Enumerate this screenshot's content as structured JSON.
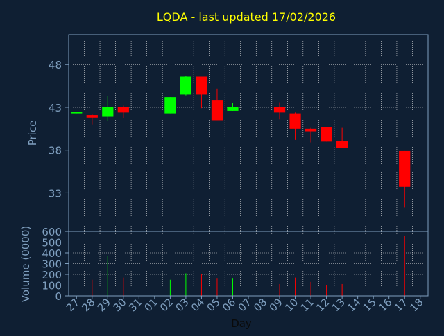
{
  "colors": {
    "background": "#0f1f33",
    "title": "#ffff00",
    "axis": "#7f9fbf",
    "grid": "#e8e8e8",
    "up": "#00ff00",
    "down": "#ff0000"
  },
  "chart_data": {
    "type": "candlestick",
    "title": "LQDA - last updated 17/02/2026",
    "xlabel": "Day",
    "price_panel": {
      "ylabel": "Price",
      "ylim": [
        28.5,
        51.5
      ],
      "yticks": [
        33,
        38,
        43,
        48
      ],
      "grid": true
    },
    "volume_panel": {
      "ylabel": "Volume (0000)",
      "ylim": [
        0,
        600
      ],
      "yticks": [
        0,
        100,
        200,
        300,
        400,
        500,
        600
      ],
      "grid": true
    },
    "x_categories": [
      "27",
      "28",
      "29",
      "30",
      "31",
      "01",
      "02",
      "03",
      "04",
      "05",
      "06",
      "07",
      "08",
      "09",
      "10",
      "11",
      "12",
      "13",
      "14",
      "15",
      "16",
      "17",
      "18"
    ],
    "candles": [
      {
        "day": "27",
        "open": 42.3,
        "close": 42.5,
        "high": 42.5,
        "low": 42.3,
        "volume": 0
      },
      {
        "day": "28",
        "open": 42.1,
        "close": 41.8,
        "high": 42.2,
        "low": 41.0,
        "volume": 150
      },
      {
        "day": "29",
        "open": 41.9,
        "close": 43.0,
        "high": 44.3,
        "low": 41.4,
        "volume": 370
      },
      {
        "day": "30",
        "open": 43.0,
        "close": 42.4,
        "high": 43.2,
        "low": 41.7,
        "volume": 170
      },
      {
        "day": "02",
        "open": 42.3,
        "close": 44.2,
        "high": 44.2,
        "low": 42.3,
        "volume": 150
      },
      {
        "day": "03",
        "open": 44.5,
        "close": 46.6,
        "high": 46.7,
        "low": 44.4,
        "volume": 210
      },
      {
        "day": "04",
        "open": 46.6,
        "close": 44.5,
        "high": 46.6,
        "low": 42.9,
        "volume": 200
      },
      {
        "day": "05",
        "open": 43.8,
        "close": 41.5,
        "high": 45.2,
        "low": 41.5,
        "volume": 160
      },
      {
        "day": "06",
        "open": 42.6,
        "close": 43.0,
        "high": 43.5,
        "low": 42.6,
        "volume": 160
      },
      {
        "day": "09",
        "open": 43.0,
        "close": 42.4,
        "high": 43.6,
        "low": 41.6,
        "volume": 110
      },
      {
        "day": "10",
        "open": 42.3,
        "close": 40.5,
        "high": 42.4,
        "low": 39.2,
        "volume": 170
      },
      {
        "day": "11",
        "open": 40.5,
        "close": 40.2,
        "high": 40.6,
        "low": 38.9,
        "volume": 130
      },
      {
        "day": "12",
        "open": 40.7,
        "close": 39.0,
        "high": 40.7,
        "low": 39.0,
        "volume": 100
      },
      {
        "day": "13",
        "open": 39.1,
        "close": 38.3,
        "high": 40.6,
        "low": 38.3,
        "volume": 110
      },
      {
        "day": "17",
        "open": 37.9,
        "close": 33.7,
        "high": 37.9,
        "low": 31.3,
        "volume": 560
      }
    ]
  }
}
